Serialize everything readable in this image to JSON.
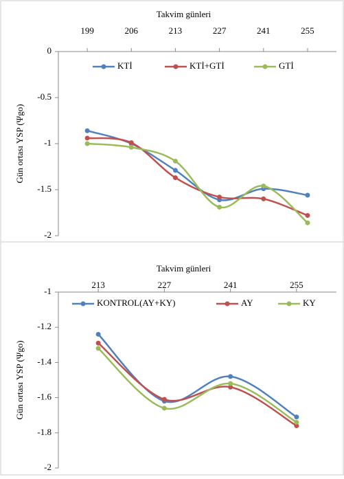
{
  "chart_data": [
    {
      "type": "line",
      "x_label": "Takvim günleri",
      "y_label": "Gün ortası YSP (Ψgo)",
      "categories": [
        "199",
        "206",
        "213",
        "227",
        "241",
        "255"
      ],
      "series": [
        {
          "name": "KTİ",
          "color": "#4f81bd",
          "values": [
            -0.86,
            -1.0,
            -1.29,
            -1.61,
            -1.49,
            -1.56
          ]
        },
        {
          "name": "KTİ+GTİ",
          "color": "#c0504d",
          "values": [
            -0.94,
            -0.99,
            -1.37,
            -1.58,
            -1.6,
            -1.78
          ]
        },
        {
          "name": "GTİ",
          "color": "#9bbb59",
          "values": [
            -1.0,
            -1.04,
            -1.19,
            -1.69,
            -1.46,
            -1.86
          ]
        }
      ],
      "ylim": [
        0,
        -2
      ],
      "yticks": [
        0,
        -0.5,
        -1,
        -1.5,
        -2
      ]
    },
    {
      "type": "line",
      "x_label": "Takvim günleri",
      "y_label": "Gün ortası YSP (Ψgo)",
      "categories": [
        "213",
        "227",
        "241",
        "255"
      ],
      "series": [
        {
          "name": "KONTROL(AY+KY)",
          "color": "#4f81bd",
          "values": [
            -1.24,
            -1.62,
            -1.48,
            -1.71
          ]
        },
        {
          "name": "AY",
          "color": "#c0504d",
          "values": [
            -1.29,
            -1.61,
            -1.54,
            -1.76
          ]
        },
        {
          "name": "KY",
          "color": "#9bbb59",
          "values": [
            -1.32,
            -1.66,
            -1.52,
            -1.74
          ]
        }
      ],
      "ylim": [
        -1,
        -2
      ],
      "yticks": [
        -1,
        -1.2,
        -1.4,
        -1.6,
        -1.8,
        -2
      ]
    }
  ]
}
